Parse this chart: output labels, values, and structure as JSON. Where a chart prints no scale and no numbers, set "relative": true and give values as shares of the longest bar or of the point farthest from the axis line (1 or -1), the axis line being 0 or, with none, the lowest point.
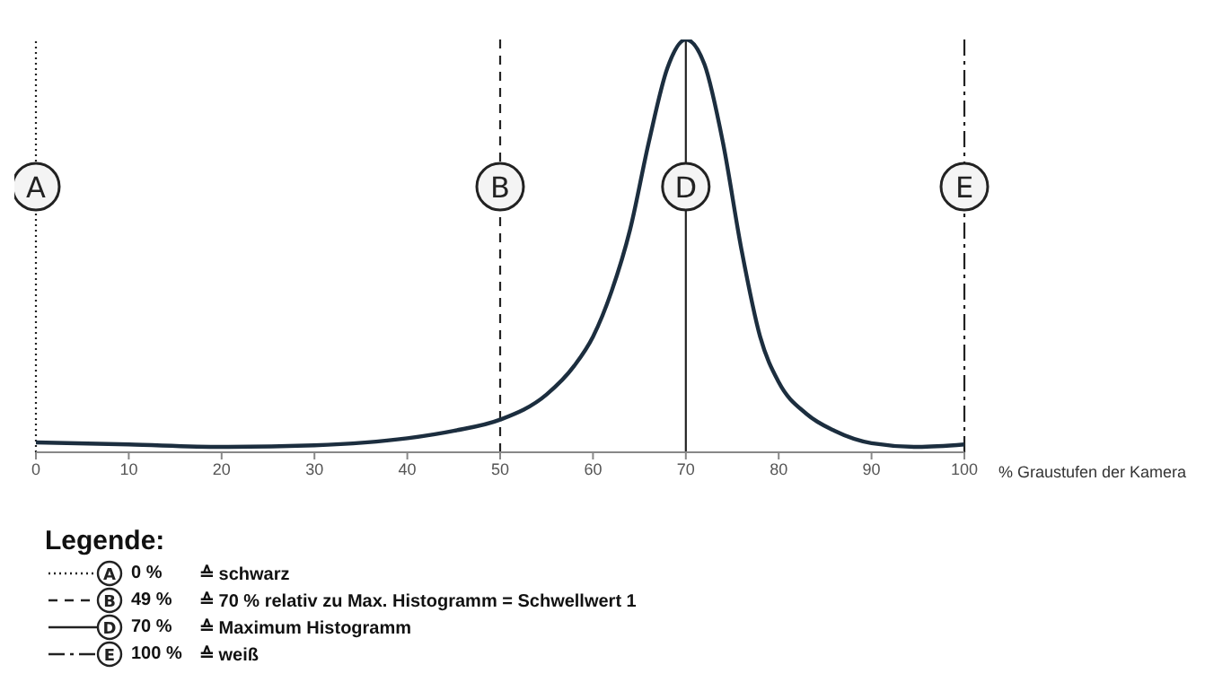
{
  "chart_data": {
    "type": "line",
    "relative": true,
    "xlabel": "% Graustufen der Kamera",
    "legend_title": "Legende:",
    "x": [
      0,
      10,
      20,
      30,
      40,
      45,
      50,
      55,
      58,
      60,
      62,
      64,
      66,
      68,
      70,
      72,
      74,
      76,
      78,
      80,
      83,
      86,
      90,
      95,
      100
    ],
    "series": [
      {
        "color": "#1c2e3f",
        "values": [
          0.024,
          0.019,
          0.013,
          0.017,
          0.034,
          0.052,
          0.079,
          0.14,
          0.21,
          0.28,
          0.39,
          0.54,
          0.75,
          0.93,
          1,
          0.94,
          0.75,
          0.49,
          0.28,
          0.17,
          0.093,
          0.052,
          0.022,
          0.013,
          0.019
        ]
      }
    ],
    "xlim": [
      0,
      100
    ],
    "xticks": [
      0,
      10,
      20,
      30,
      40,
      50,
      60,
      70,
      80,
      90,
      100
    ],
    "marker": "none",
    "line_style": "solid",
    "grid": false,
    "ref_lines": [
      {
        "axis": "x",
        "value": 0,
        "label": "A",
        "line_style": "dotted",
        "color": "#222222"
      },
      {
        "axis": "x",
        "value": 50,
        "label": "B",
        "line_style": "dashed",
        "color": "#222222"
      },
      {
        "axis": "x",
        "value": 70,
        "label": "D",
        "line_style": "solid",
        "color": "#222222"
      },
      {
        "axis": "x",
        "value": 100,
        "label": "E",
        "line_style": "dashdot",
        "color": "#222222"
      }
    ],
    "annotations": [
      "0 %",
      "≙ schwarz",
      "49 %",
      "≙ 70 % relativ zu Max. Histogramm = Schwellwert 1",
      "70 %",
      "≙ Maximum Histogramm",
      "100 %",
      "≙ weiß"
    ]
  }
}
